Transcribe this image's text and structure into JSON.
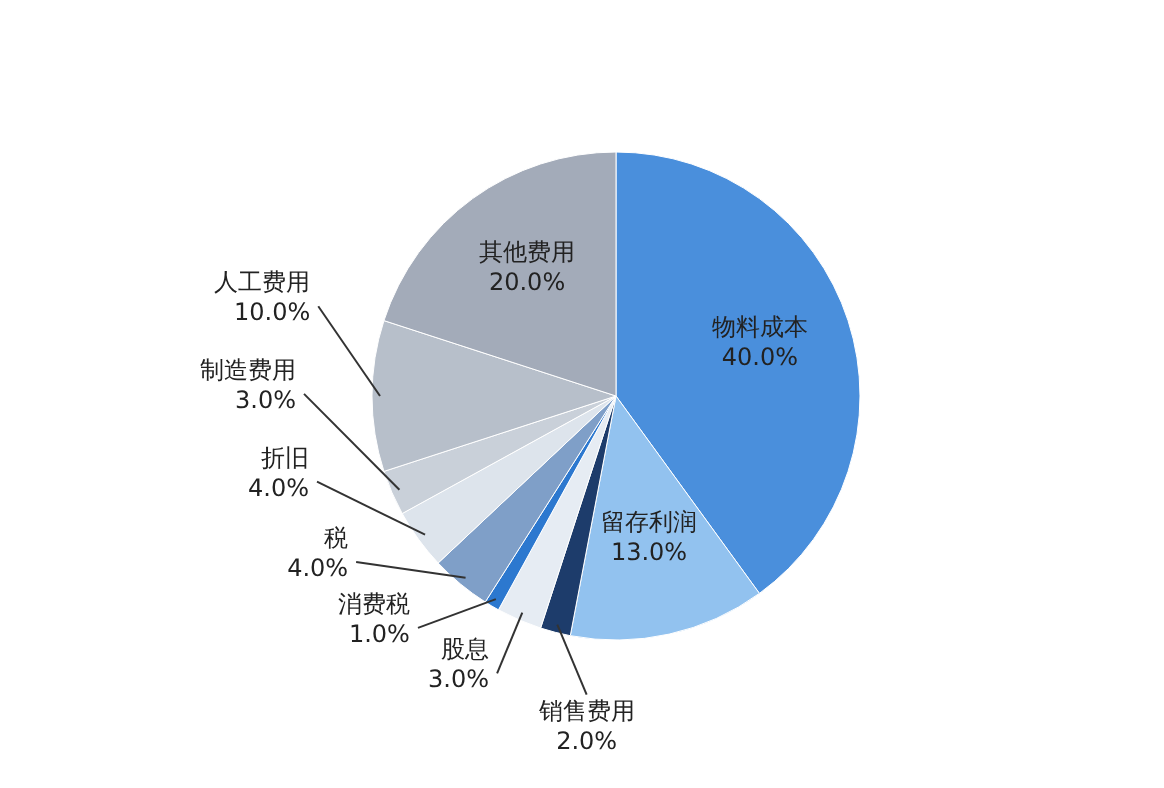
{
  "chart_data": {
    "type": "pie",
    "categories": [
      "物料成本",
      "留存利润",
      "销售费用",
      "股息",
      "消费税",
      "税",
      "折旧",
      "制造费用",
      "人工费用",
      "其他费用"
    ],
    "values": [
      40,
      13,
      2,
      3,
      1,
      4,
      4,
      3,
      10,
      20
    ],
    "value_labels": [
      "40.0%",
      "13.0%",
      "2.0%",
      "3.0%",
      "1.0%",
      "4.0%",
      "4.0%",
      "3.0%",
      "10.0%",
      "20.0%"
    ],
    "colors": [
      "#4a8fdc",
      "#92c2ef",
      "#1d3c6b",
      "#e6ecf3",
      "#2c78cf",
      "#7f9fc8",
      "#dde4ec",
      "#c9d0d9",
      "#b7bfca",
      "#a3abb9"
    ]
  }
}
